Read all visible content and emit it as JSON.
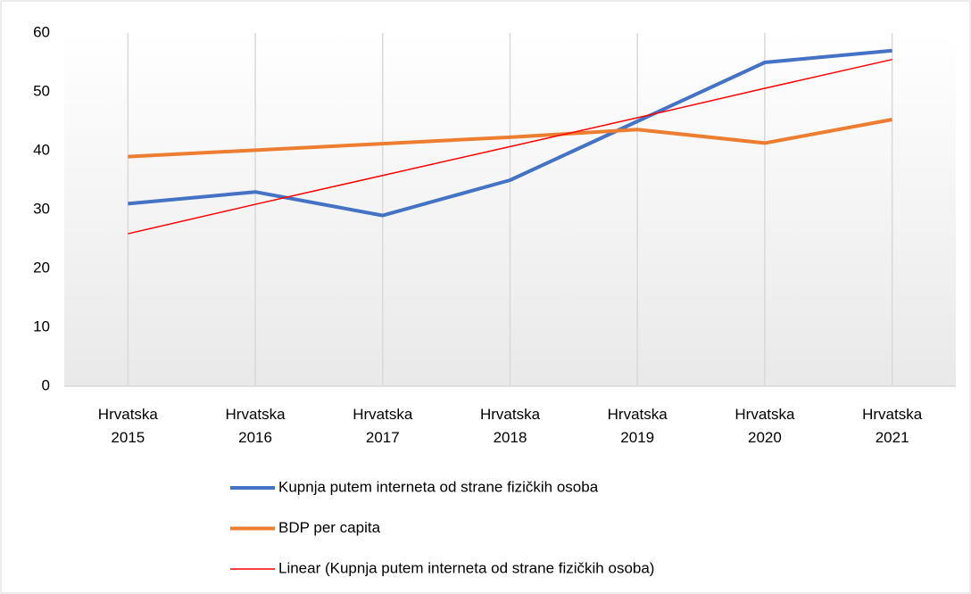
{
  "chart_data": {
    "type": "line",
    "categories": [
      "Hrvatska 2015",
      "Hrvatska 2016",
      "Hrvatska 2017",
      "Hrvatska 2018",
      "Hrvatska 2019",
      "Hrvatska 2020",
      "Hrvatska 2021"
    ],
    "series": [
      {
        "name": "Kupnja putem interneta od strane fizičkih osoba",
        "color": "#4472c4",
        "values": [
          31,
          33,
          29,
          35,
          45,
          55,
          57
        ]
      },
      {
        "name": "BDP per capita",
        "color": "#ed7d31",
        "values": [
          39,
          40.1,
          41.2,
          42.3,
          43.6,
          41.3,
          45.3
        ]
      },
      {
        "name": "Linear (Kupnja putem interneta od strane fizičkih osoba)",
        "color": "#ff0000",
        "values": [
          25.9,
          30.9,
          35.8,
          40.7,
          45.6,
          50.6,
          55.5
        ]
      }
    ],
    "ylim": [
      0,
      60
    ],
    "yticks": [
      0,
      10,
      20,
      30,
      40,
      50,
      60
    ],
    "grid": true,
    "legend": "bottom"
  }
}
